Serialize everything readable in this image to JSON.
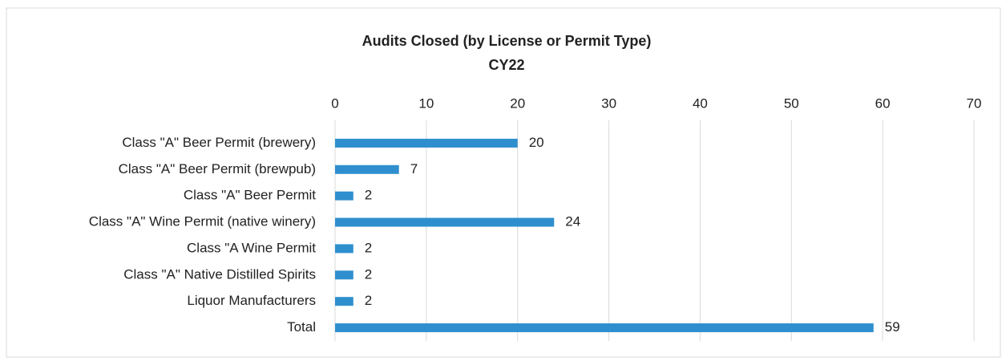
{
  "chart_data": {
    "type": "bar",
    "orientation": "horizontal",
    "title": "Audits Closed (by License or Permit Type)",
    "subtitle": "CY22",
    "categories": [
      "Class \"A\" Beer Permit (brewery)",
      "Class \"A\" Beer Permit (brewpub)",
      "Class \"A\" Beer Permit",
      "Class \"A\" Wine Permit (native winery)",
      "Class \"A Wine Permit",
      "Class \"A\" Native Distilled Spirits",
      "Liquor Manufacturers",
      "Total"
    ],
    "values": [
      20,
      7,
      2,
      24,
      2,
      2,
      2,
      59
    ],
    "color": "#2f8fce",
    "xlim": [
      0,
      70
    ],
    "xticks": [
      0,
      10,
      20,
      30,
      40,
      50,
      60,
      70
    ],
    "grid": true,
    "data_labels": true
  }
}
